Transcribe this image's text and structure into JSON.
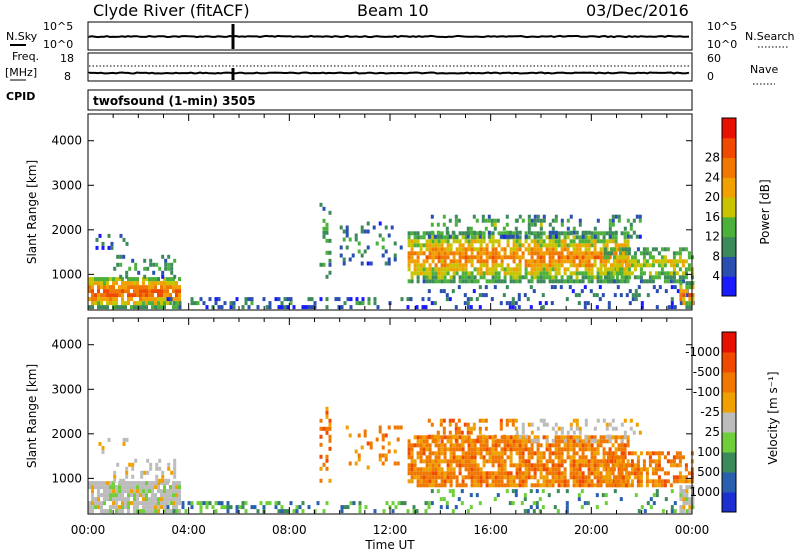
{
  "header": {
    "station": "Clyde River (fitACF)",
    "beam": "Beam 10",
    "date": "03/Dec/2016"
  },
  "strips": {
    "nsky_label": "N.Sky",
    "nsky_ticks": [
      "10^5",
      "10^0"
    ],
    "nsearch_label": "N.Search",
    "nsearch_ticks": [
      "10^5",
      "10^0"
    ],
    "freq_label": "Freq.",
    "freq_unit": "[MHz]",
    "freq_ticks": [
      "18",
      "8"
    ],
    "nave_label": "Nave",
    "nave_ticks": [
      "60",
      "0"
    ],
    "cpid_label": "CPID",
    "cpid_text": "twofsound (1-min) 3505"
  },
  "colors": {
    "power": [
      "#1a1aff",
      "#2a4fb0",
      "#3c8a5a",
      "#4bb13a",
      "#c9c400",
      "#f0a000",
      "#f07800",
      "#f04a00",
      "#e81000"
    ],
    "velocity": [
      "#1c2fd0",
      "#2a5fb0",
      "#3c8a5a",
      "#6fcf3a",
      "#bcbcbc",
      "#f0a000",
      "#f07800",
      "#f04a00",
      "#e81000"
    ]
  },
  "chart_data": [
    {
      "type": "heatmap",
      "panel": "power",
      "xlabel": "",
      "ylabel": "Slant Range [km]",
      "xlim": [
        "00:00",
        "00:00"
      ],
      "ylim": [
        200,
        4600
      ],
      "yticks": [
        "1000",
        "2000",
        "3000",
        "4000"
      ],
      "colorbar": {
        "label": "Power [dB]",
        "ticks": [
          "4",
          "8",
          "12",
          "16",
          "20",
          "24",
          "28"
        ]
      }
    },
    {
      "type": "heatmap",
      "panel": "velocity",
      "xlabel": "Time UT",
      "ylabel": "Slant Range [km]",
      "xticks": [
        "00:00",
        "04:00",
        "08:00",
        "12:00",
        "16:00",
        "20:00",
        "00:00"
      ],
      "ylim": [
        200,
        4600
      ],
      "yticks": [
        "1000",
        "2000",
        "3000",
        "4000"
      ],
      "colorbar": {
        "label": "Velocity [m s⁻¹]",
        "ticks": [
          "1000",
          "500",
          "100",
          "25",
          "-25",
          "-100",
          "-500",
          "-1000"
        ]
      }
    }
  ]
}
